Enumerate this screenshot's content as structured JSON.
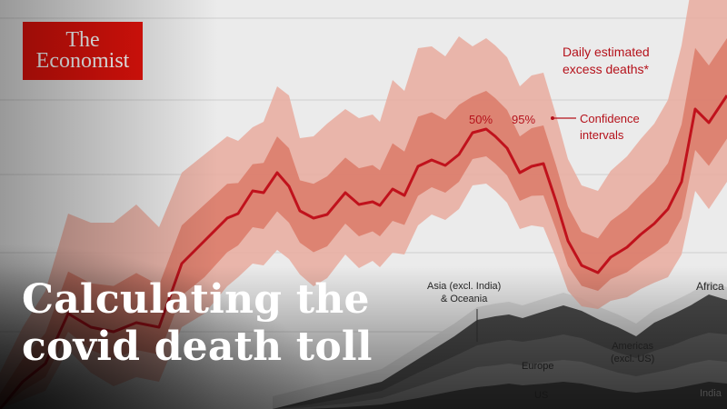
{
  "logo": {
    "line1": "The",
    "line2": "Economist"
  },
  "annotations": {
    "daily_line1": "Daily estimated",
    "daily_line2": "excess deaths*",
    "ci_50": "50%",
    "ci_95": "95%",
    "ci_line1": "Confidence",
    "ci_line2": "intervals"
  },
  "regions": {
    "asia_line1": "Asia (excl. India)",
    "asia_line2": "& Oceania",
    "africa": "Africa",
    "americas_line1": "Americas",
    "americas_line2": "(excl. US)",
    "europe": "Europe",
    "us": "US",
    "india": "India"
  },
  "headline": {
    "line1": "Calculating the",
    "line2": "covid death toll"
  },
  "colors": {
    "brand_red": "#e3120b",
    "line_red": "#c0121c",
    "band_95": "#e8a89e",
    "band_50": "#d9705f"
  }
}
